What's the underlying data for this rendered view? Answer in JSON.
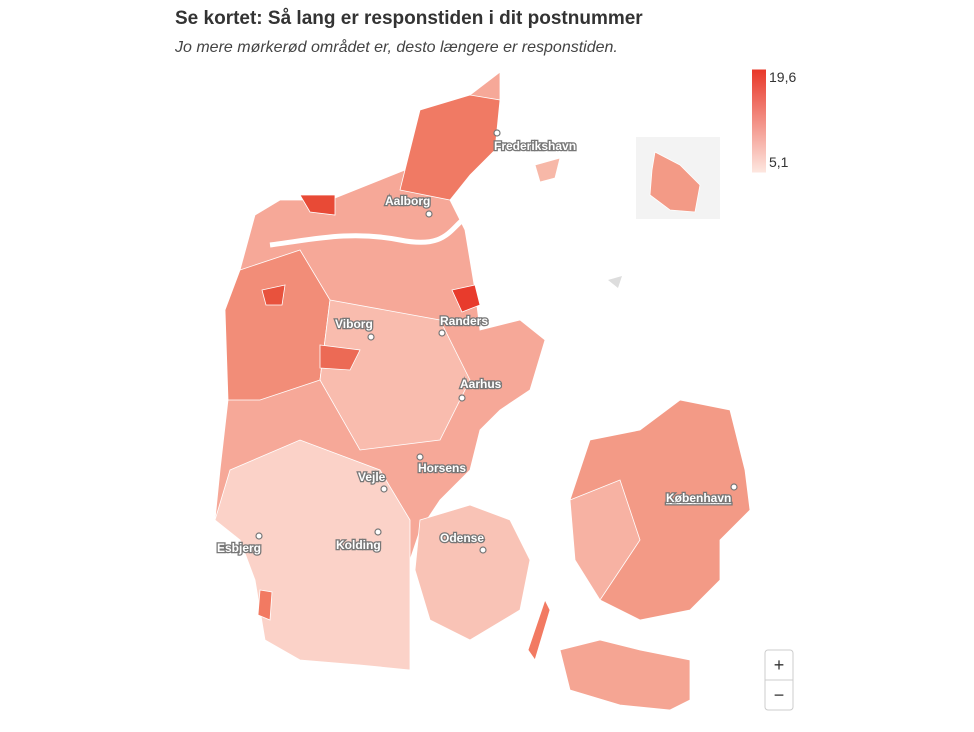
{
  "title": "Se kortet: Så lang er responstiden i dit postnummer",
  "subtitle": "Jo mere mørkerød området er, desto længere er responstiden.",
  "legend": {
    "max": {
      "value": 19.6,
      "label": "19,6"
    },
    "min": {
      "value": 5.1,
      "label": "5,1"
    }
  },
  "cities": [
    "Frederikshavn",
    "Aalborg",
    "Viborg",
    "Randers",
    "Aarhus",
    "Horsens",
    "Vejle",
    "Kolding",
    "Esbjerg",
    "Odense",
    "København"
  ],
  "zoom": {
    "in": "+",
    "out": "−"
  }
}
